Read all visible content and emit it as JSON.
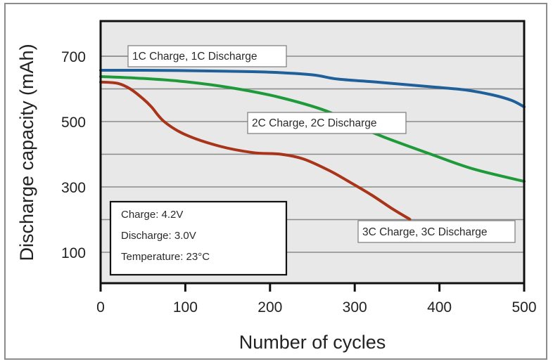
{
  "chart_data": {
    "type": "line",
    "title": "",
    "xlabel": "Number of cycles",
    "ylabel": "Discharge capacity (mAh)",
    "xlim": [
      0,
      500
    ],
    "ylim": [
      0,
      800
    ],
    "xticks": [
      0,
      100,
      200,
      300,
      400,
      500
    ],
    "yticks_labeled": [
      100,
      300,
      500,
      700
    ],
    "gridlines_y": [
      100,
      200,
      300,
      400,
      500,
      600,
      700
    ],
    "grid": true,
    "series": [
      {
        "name": "1C Charge, 1C Discharge",
        "color": "#1f5f9a",
        "x": [
          0,
          50,
          100,
          150,
          200,
          250,
          280,
          330,
          396,
          430,
          462,
          485,
          500
        ],
        "values": [
          657,
          657,
          656,
          654,
          651,
          643,
          630,
          620,
          605,
          597,
          582,
          565,
          545
        ]
      },
      {
        "name": "2C Charge, 2C Discharge",
        "color": "#1f9a3a",
        "x": [
          0,
          50,
          100,
          155,
          210,
          267,
          300,
          334,
          390,
          440,
          500
        ],
        "values": [
          638,
          632,
          622,
          603,
          575,
          532,
          490,
          453,
          400,
          355,
          317
        ]
      },
      {
        "name": "3C Charge, 3C Discharge",
        "color": "#a8341a",
        "x": [
          0,
          20,
          35,
          50,
          60,
          75,
          100,
          140,
          180,
          213,
          240,
          270,
          292,
          320,
          345,
          365
        ],
        "values": [
          621,
          617,
          600,
          570,
          545,
          500,
          460,
          425,
          405,
          400,
          385,
          350,
          318,
          275,
          232,
          201
        ]
      }
    ],
    "annotations": {
      "conditions": [
        "Charge: 4.2V",
        "Discharge: 3.0V",
        "Temperature: 23°C"
      ],
      "conditions_position": "bottom-left"
    },
    "colors": {
      "plot_background": "#e8e8e8",
      "gridline": "#8a8a8a",
      "axis": "#111111"
    }
  }
}
